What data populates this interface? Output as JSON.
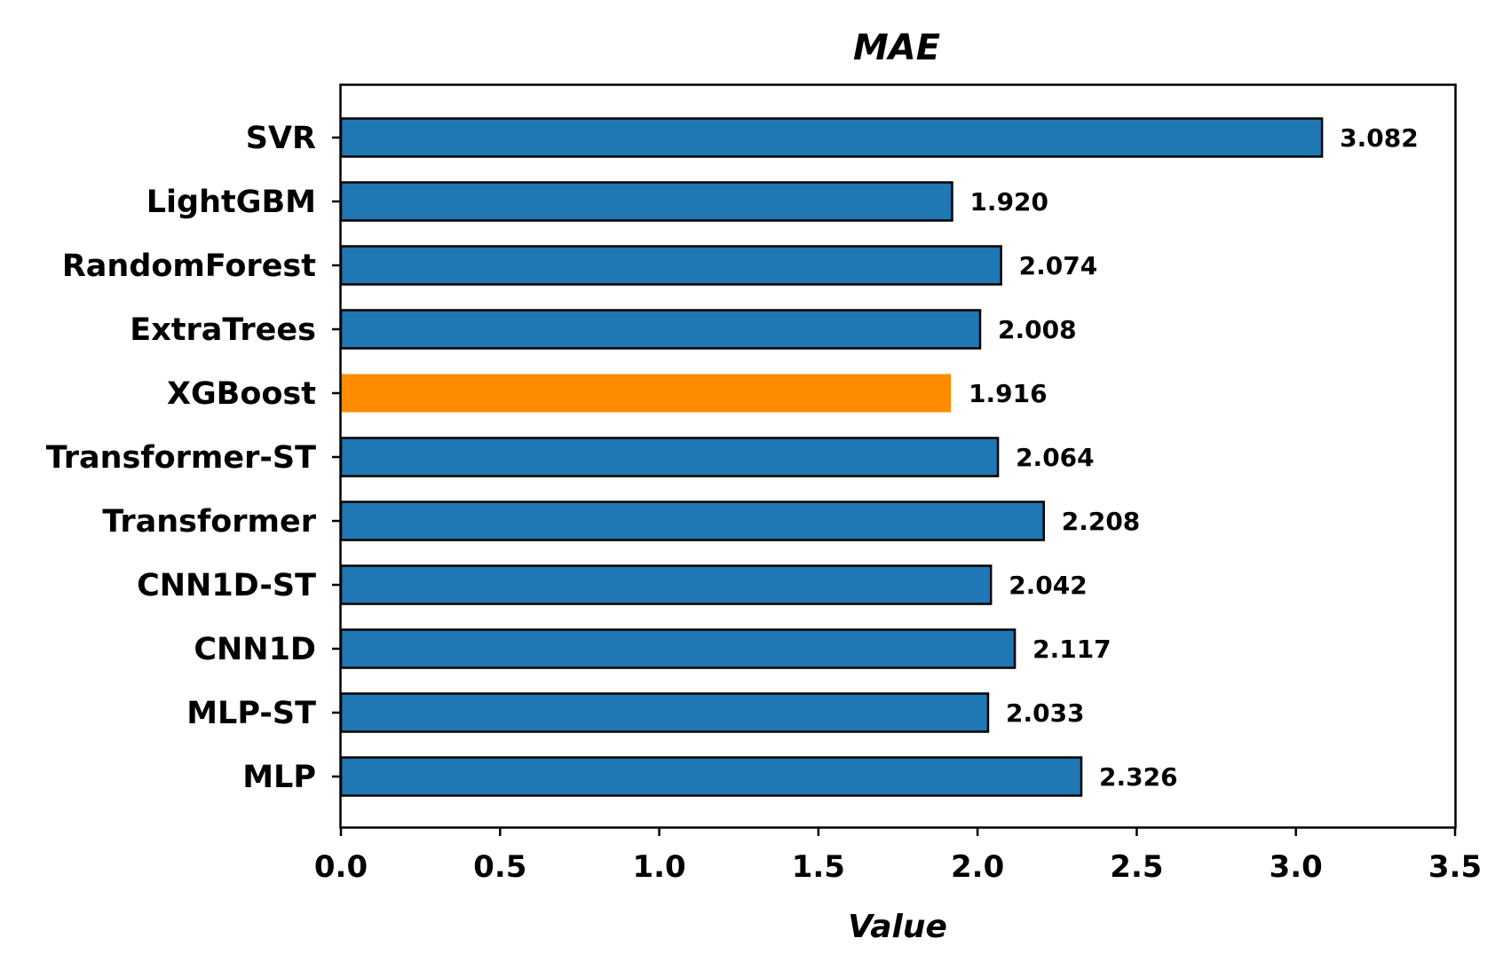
{
  "chart_data": {
    "type": "bar",
    "orientation": "horizontal",
    "title": "MAE",
    "xlabel": "Value",
    "ylabel": "",
    "xlim": [
      0,
      3.5
    ],
    "xticks": [
      "0.0",
      "0.5",
      "1.0",
      "1.5",
      "2.0",
      "2.5",
      "3.0",
      "3.5"
    ],
    "grid": false,
    "categories": [
      "SVR",
      "LightGBM",
      "RandomForest",
      "ExtraTrees",
      "XGBoost",
      "Transformer-ST",
      "Transformer",
      "CNN1D-ST",
      "CNN1D",
      "MLP-ST",
      "MLP"
    ],
    "values": [
      3.082,
      1.92,
      2.074,
      2.008,
      1.916,
      2.064,
      2.208,
      2.042,
      2.117,
      2.033,
      2.326
    ],
    "value_labels": [
      "3.082",
      "1.920",
      "2.074",
      "2.008",
      "1.916",
      "2.064",
      "2.208",
      "2.042",
      "2.117",
      "2.033",
      "2.326"
    ],
    "highlight_category": "XGBoost",
    "colors": {
      "bar": "#1f77b4",
      "highlight": "#ff8c00",
      "edge": "#000000"
    }
  }
}
